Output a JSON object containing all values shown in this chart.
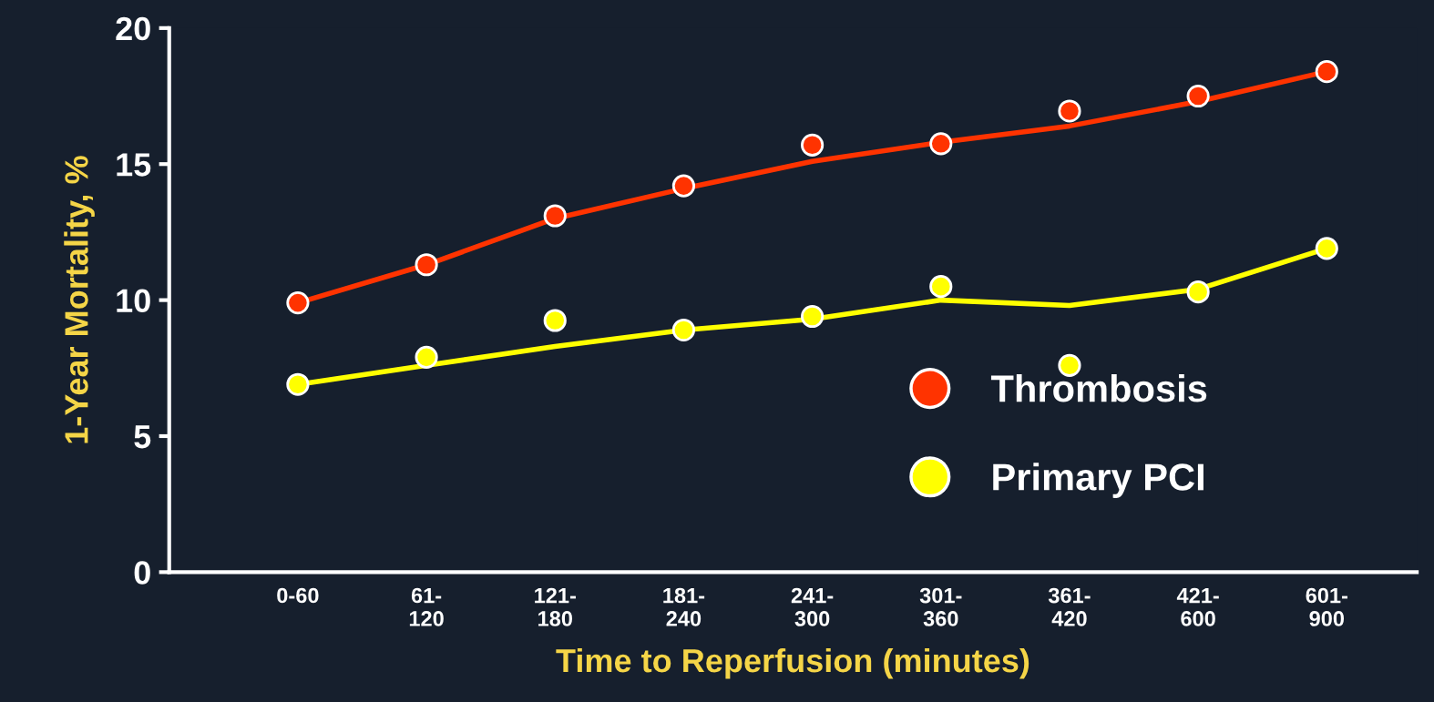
{
  "chart_data": {
    "type": "line",
    "xlabel": "Time to Reperfusion (minutes)",
    "ylabel": "1-Year Mortality, %",
    "categories": [
      "0-60",
      "61-\n120",
      "121-\n180",
      "181-\n240",
      "241-\n300",
      "301-\n360",
      "361-\n420",
      "421-\n600",
      "601-\n900"
    ],
    "ylim": [
      0,
      20
    ],
    "yticks": [
      0,
      5,
      10,
      15,
      20
    ],
    "grid": false,
    "legend": "right",
    "series": [
      {
        "color": "#ff3300",
        "values": [
          9.9,
          11.3,
          13.0,
          14.1,
          15.1,
          15.8,
          16.4,
          17.3,
          18.4
        ]
      },
      {
        "color": "#ffff00",
        "values": [
          6.9,
          7.6,
          8.3,
          8.9,
          9.3,
          10.0,
          9.8,
          10.4,
          11.9
        ]
      },
      {
        "type": "scatter",
        "name": "Thrombosis",
        "color": "#ff3300",
        "marker": "circle",
        "values": [
          9.9,
          11.3,
          13.1,
          14.2,
          15.7,
          15.75,
          16.95,
          17.5,
          18.4
        ]
      },
      {
        "type": "scatter",
        "name": "Primary PCI",
        "color": "#ffff00",
        "marker": "circle",
        "values": [
          6.9,
          7.9,
          9.25,
          8.9,
          9.4,
          10.5,
          7.6,
          10.3,
          11.9
        ]
      }
    ]
  }
}
